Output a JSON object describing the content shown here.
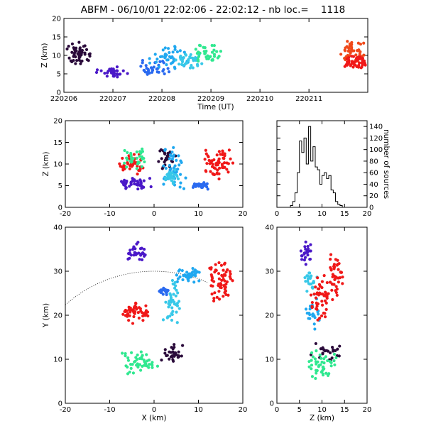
{
  "title": "ABFM - 06/10/01 22:02:06 - 22:02:12 - nb loc.=    1118",
  "palette": {
    "dark_purple": "#2a0a3a",
    "indigo": "#4a18c8",
    "blue": "#2a6af0",
    "sky": "#20a8f0",
    "cyan": "#38c8e8",
    "green": "#30e890",
    "red": "#f01818",
    "orange_red": "#f04818"
  },
  "chart_data": [
    {
      "id": "time-height",
      "type": "scatter",
      "xlabel": "Time (UT)",
      "ylabel": "Z (km)",
      "xlim": [
        0,
        6.2
      ],
      "ylim": [
        0,
        20
      ],
      "xticks": [
        0,
        1,
        2,
        3,
        4,
        5
      ],
      "xtick_labels": [
        "220206",
        "220207",
        "220208",
        "220209",
        "220210",
        "220211"
      ],
      "yticks": [
        0,
        5,
        10,
        15,
        20
      ],
      "clusters": [
        {
          "color": "dark_purple",
          "n": 50,
          "x": [
            0.05,
            0.55
          ],
          "y": [
            7,
            14
          ]
        },
        {
          "color": "indigo",
          "n": 30,
          "x": [
            0.6,
            1.4
          ],
          "y": [
            4,
            7
          ]
        },
        {
          "color": "blue",
          "n": 35,
          "x": [
            1.45,
            2.2
          ],
          "y": [
            4,
            9
          ]
        },
        {
          "color": "sky",
          "n": 45,
          "x": [
            1.7,
            2.6
          ],
          "y": [
            5,
            13
          ]
        },
        {
          "color": "cyan",
          "n": 35,
          "x": [
            2.2,
            2.9
          ],
          "y": [
            6,
            12
          ]
        },
        {
          "color": "green",
          "n": 35,
          "x": [
            2.6,
            3.3
          ],
          "y": [
            7,
            14
          ]
        },
        {
          "color": "orange_red",
          "n": 40,
          "x": [
            5.6,
            6.15
          ],
          "y": [
            8,
            14
          ]
        },
        {
          "color": "red",
          "n": 50,
          "x": [
            5.7,
            6.2
          ],
          "y": [
            6,
            10
          ]
        }
      ]
    },
    {
      "id": "x-z",
      "type": "scatter",
      "xlabel": "",
      "ylabel": "Z (km)",
      "xlim": [
        -20,
        20
      ],
      "ylim": [
        0,
        20
      ],
      "xticks": [
        -20,
        -10,
        0,
        10,
        20
      ],
      "yticks": [
        0,
        5,
        10,
        15,
        20
      ],
      "clusters": [
        {
          "color": "indigo",
          "n": 40,
          "x": [
            -8,
            0
          ],
          "y": [
            4,
            7
          ]
        },
        {
          "color": "red",
          "n": 40,
          "x": [
            -8,
            -2
          ],
          "y": [
            7,
            13
          ]
        },
        {
          "color": "green",
          "n": 30,
          "x": [
            -7,
            -1
          ],
          "y": [
            8,
            14
          ]
        },
        {
          "color": "dark_purple",
          "n": 25,
          "x": [
            0,
            5
          ],
          "y": [
            8,
            14
          ]
        },
        {
          "color": "sky",
          "n": 45,
          "x": [
            1,
            8
          ],
          "y": [
            4,
            14
          ]
        },
        {
          "color": "cyan",
          "n": 25,
          "x": [
            2,
            6
          ],
          "y": [
            5,
            9
          ]
        },
        {
          "color": "blue",
          "n": 25,
          "x": [
            8,
            13
          ],
          "y": [
            4,
            6
          ]
        },
        {
          "color": "red",
          "n": 60,
          "x": [
            11,
            18
          ],
          "y": [
            6,
            14
          ]
        }
      ]
    },
    {
      "id": "z-histogram",
      "type": "bar",
      "xlabel": "",
      "ylabel": "number of sources",
      "xlim": [
        0,
        20
      ],
      "ylim": [
        0,
        150
      ],
      "xticks": [
        0,
        5,
        10,
        15,
        20
      ],
      "yticks": [
        0,
        20,
        40,
        60,
        80,
        100,
        120,
        140
      ],
      "bin_width": 0.5,
      "bins_start": 3.0,
      "values": [
        3,
        10,
        25,
        60,
        115,
        95,
        120,
        75,
        140,
        80,
        105,
        70,
        65,
        40,
        55,
        60,
        50,
        55,
        30,
        25,
        10,
        5,
        3
      ]
    },
    {
      "id": "x-y",
      "type": "scatter",
      "xlabel": "X (km)",
      "ylabel": "Y (km)",
      "xlim": [
        -20,
        20
      ],
      "ylim": [
        0,
        40
      ],
      "xticks": [
        -20,
        -10,
        0,
        10,
        20
      ],
      "yticks": [
        0,
        10,
        20,
        30,
        40
      ],
      "dotted_arc": {
        "cx": 0,
        "cy": 0,
        "r": 30,
        "x_from": -20,
        "x_to": 12
      },
      "clusters": [
        {
          "color": "indigo",
          "n": 30,
          "x": [
            -7,
            -1
          ],
          "y": [
            32,
            37
          ]
        },
        {
          "color": "sky",
          "n": 40,
          "x": [
            3,
            12
          ],
          "y": [
            27,
            31
          ]
        },
        {
          "color": "cyan",
          "n": 40,
          "x": [
            2,
            6
          ],
          "y": [
            16,
            29
          ]
        },
        {
          "color": "blue",
          "n": 20,
          "x": [
            1,
            4
          ],
          "y": [
            24,
            27
          ]
        },
        {
          "color": "red",
          "n": 50,
          "x": [
            -8,
            -1
          ],
          "y": [
            18,
            23
          ]
        },
        {
          "color": "red",
          "n": 60,
          "x": [
            12,
            18
          ],
          "y": [
            22,
            33
          ]
        },
        {
          "color": "green",
          "n": 50,
          "x": [
            -8,
            2
          ],
          "y": [
            6,
            12
          ]
        },
        {
          "color": "dark_purple",
          "n": 30,
          "x": [
            1,
            7
          ],
          "y": [
            8,
            14
          ]
        }
      ]
    },
    {
      "id": "z-y",
      "type": "scatter",
      "xlabel": "Z (km)",
      "ylabel": "",
      "xlim": [
        0,
        20
      ],
      "ylim": [
        0,
        40
      ],
      "xticks": [
        0,
        5,
        10,
        15,
        20
      ],
      "yticks": [
        0,
        10,
        20,
        30,
        40
      ],
      "clusters": [
        {
          "color": "indigo",
          "n": 25,
          "x": [
            5,
            8
          ],
          "y": [
            31,
            37
          ]
        },
        {
          "color": "cyan",
          "n": 25,
          "x": [
            6,
            9
          ],
          "y": [
            25,
            31
          ]
        },
        {
          "color": "sky",
          "n": 25,
          "x": [
            6,
            10
          ],
          "y": [
            16,
            26
          ]
        },
        {
          "color": "red",
          "n": 50,
          "x": [
            7,
            13
          ],
          "y": [
            18,
            30
          ]
        },
        {
          "color": "red",
          "n": 40,
          "x": [
            11,
            15
          ],
          "y": [
            23,
            35
          ]
        },
        {
          "color": "dark_purple",
          "n": 25,
          "x": [
            7,
            15
          ],
          "y": [
            9,
            15
          ]
        },
        {
          "color": "green",
          "n": 45,
          "x": [
            6,
            14
          ],
          "y": [
            5,
            12
          ]
        }
      ]
    }
  ]
}
